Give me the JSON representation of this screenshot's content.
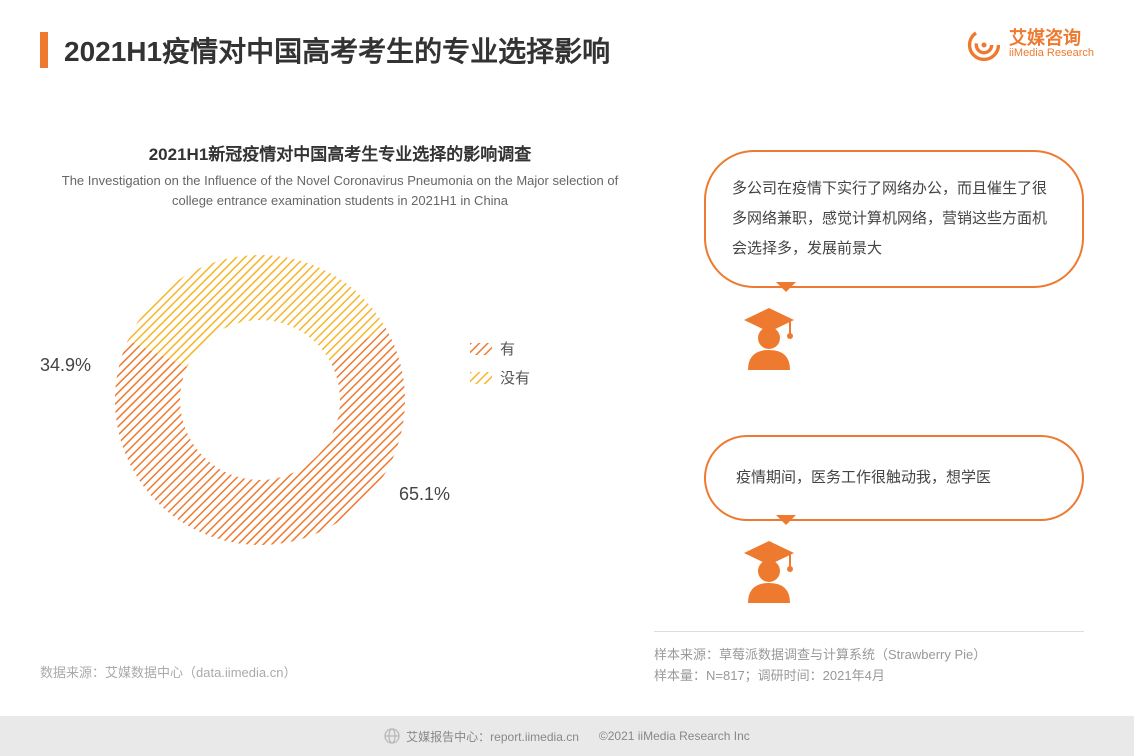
{
  "header": {
    "title": "2021H1疫情对中国高考考生的专业选择影响",
    "accent_color": "#ee7a30"
  },
  "logo": {
    "text_zh": "艾媒咨询",
    "text_en": "iiMedia Research",
    "color": "#ee7a30"
  },
  "chart": {
    "type": "donut",
    "title_zh": "2021H1新冠疫情对中国高考生专业选择的影响调查",
    "title_en": "The Investigation on the Influence of the Novel Coronavirus Pneumonia on the Major selection of college entrance examination students in 2021H1 in China",
    "inner_radius_pct": 55,
    "outer_radius_pct": 100,
    "background_color": "#ffffff",
    "slices": [
      {
        "label": "有",
        "value": 65.1,
        "display": "65.1%",
        "color": "#ee7a30",
        "pattern": "diag"
      },
      {
        "label": "没有",
        "value": 34.9,
        "display": "34.9%",
        "color": "#f7b528",
        "pattern": "diag"
      }
    ],
    "label_fontsize": 18,
    "label_color": "#444444",
    "start_angle_deg": 60
  },
  "legend": {
    "items": [
      {
        "label": "有",
        "color": "#ee7a30"
      },
      {
        "label": "没有",
        "color": "#f7b528"
      }
    ]
  },
  "quotes": [
    {
      "text": "多公司在疫情下实行了网络办公，而且催生了很多网络兼职，感觉计算机网络，营销这些方面机会选择多，发展前景大"
    },
    {
      "text": "疫情期间，医务工作很触动我，想学医"
    }
  ],
  "sample": {
    "source_label": "样本来源：草莓派数据调查与计算系统（Strawberry Pie）",
    "size_label": "样本量：N=817；调研时间：2021年4月"
  },
  "source_left": "数据来源：艾媒数据中心（data.iimedia.cn）",
  "footer": {
    "left": "艾媒报告中心：report.iimedia.cn",
    "right": "©2021  iiMedia Research  Inc"
  },
  "colors": {
    "orange": "#ee7a30",
    "yellow": "#f7b528",
    "text": "#333333",
    "muted": "#999999",
    "footer_bg": "#e9e9e9"
  }
}
